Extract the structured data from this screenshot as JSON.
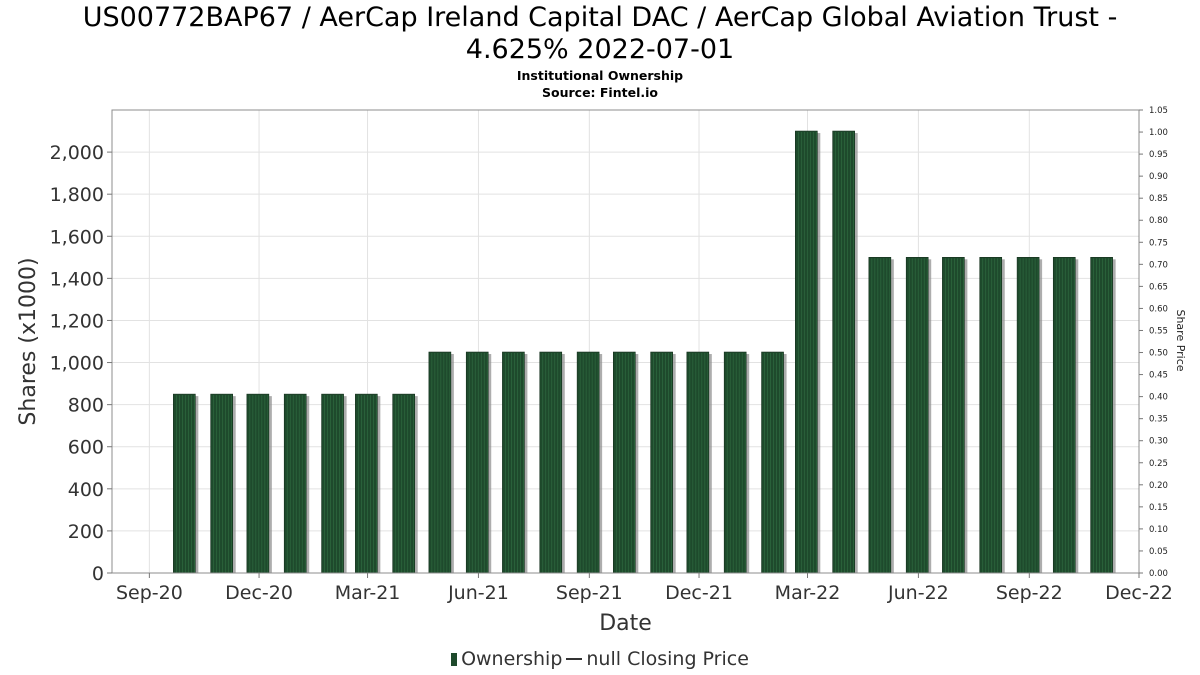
{
  "chart_data": {
    "type": "bar",
    "title": "US00772BAP67 / AerCap Ireland Capital DAC / AerCap Global Aviation Trust - 4.625% 2022-07-01",
    "title_line1": "US00772BAP67 / AerCap Ireland Capital DAC / AerCap Global Aviation Trust -",
    "title_line2": "4.625% 2022-07-01",
    "subtitle": "Institutional Ownership",
    "source": "Source: Fintel.io",
    "xlabel": "Date",
    "ylabel": "Shares (x1000)",
    "y2label": "Share Price",
    "ylim": [
      0,
      2200
    ],
    "y2lim": [
      0,
      1.05
    ],
    "yticks": [
      0,
      200,
      400,
      600,
      800,
      1000,
      1200,
      1400,
      1600,
      1800,
      2000
    ],
    "ytick_labels": [
      "0",
      "200",
      "400",
      "600",
      "800",
      "1,000",
      "1,200",
      "1,400",
      "1,600",
      "1,800",
      "2,000"
    ],
    "y2ticks": [
      "0.00",
      "0.05",
      "0.10",
      "0.15",
      "0.20",
      "0.25",
      "0.30",
      "0.35",
      "0.40",
      "0.45",
      "0.50",
      "0.55",
      "0.60",
      "0.65",
      "0.70",
      "0.75",
      "0.80",
      "0.85",
      "0.90",
      "0.95",
      "1.00",
      "1.05"
    ],
    "xlim": [
      "2020-08-01",
      "2022-12-01"
    ],
    "xticks": [
      {
        "date": "2020-09-01",
        "label": "Sep-20"
      },
      {
        "date": "2020-12-01",
        "label": "Dec-20"
      },
      {
        "date": "2021-03-01",
        "label": "Mar-21"
      },
      {
        "date": "2021-06-01",
        "label": "Jun-21"
      },
      {
        "date": "2021-09-01",
        "label": "Sep-21"
      },
      {
        "date": "2021-12-01",
        "label": "Dec-21"
      },
      {
        "date": "2022-03-01",
        "label": "Mar-22"
      },
      {
        "date": "2022-06-01",
        "label": "Jun-22"
      },
      {
        "date": "2022-09-01",
        "label": "Sep-22"
      },
      {
        "date": "2022-12-01",
        "label": "Dec-22"
      }
    ],
    "series": [
      {
        "name": "Ownership",
        "color": "#1e4a2c",
        "x": [
          "2020-09-30",
          "2020-10-31",
          "2020-11-30",
          "2020-12-31",
          "2021-01-31",
          "2021-02-28",
          "2021-03-31",
          "2021-04-30",
          "2021-05-31",
          "2021-06-30",
          "2021-07-31",
          "2021-08-31",
          "2021-09-30",
          "2021-10-31",
          "2021-11-30",
          "2021-12-31",
          "2022-01-31",
          "2022-02-28",
          "2022-03-31",
          "2022-04-30",
          "2022-05-31",
          "2022-06-30",
          "2022-07-31",
          "2022-08-31",
          "2022-09-30",
          "2022-10-31"
        ],
        "values": [
          850,
          850,
          850,
          850,
          850,
          850,
          850,
          1050,
          1050,
          1050,
          1050,
          1050,
          1050,
          1050,
          1050,
          1050,
          1050,
          2100,
          2100,
          1500,
          1500,
          1500,
          1500,
          1500,
          1500,
          1500
        ]
      },
      {
        "name": "null Closing Price",
        "color": "#333333",
        "x": [],
        "values": []
      }
    ],
    "legend_position": "bottom",
    "grid": true
  }
}
